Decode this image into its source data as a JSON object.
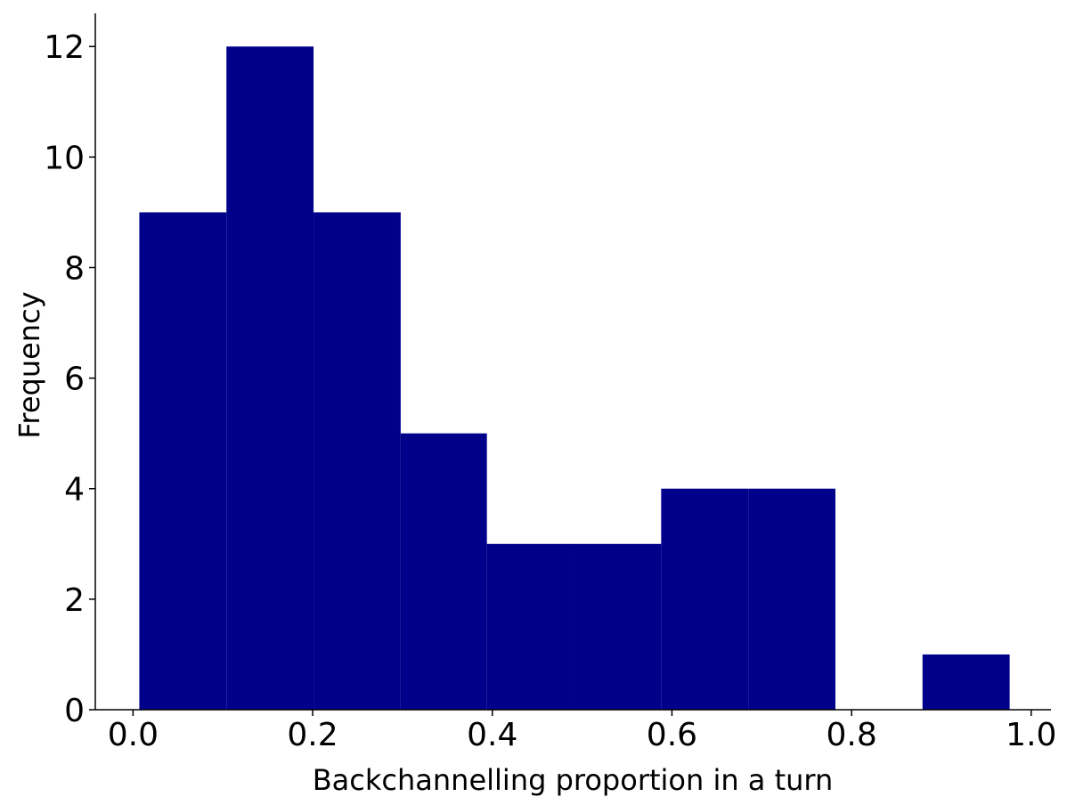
{
  "chart_data": {
    "type": "histogram",
    "xlabel": "Backchannelling proportion in a turn",
    "ylabel": "Frequency",
    "bins": [
      0.007,
      0.104,
      0.201,
      0.298,
      0.394,
      0.491,
      0.588,
      0.685,
      0.782,
      0.879,
      0.976
    ],
    "values": [
      9,
      12,
      9,
      5,
      3,
      3,
      4,
      4,
      0,
      1
    ],
    "color": "#00008b",
    "xlim": [
      -0.042,
      1.022
    ],
    "ylim": [
      0,
      12.6
    ],
    "xticks": [
      {
        "value": 0,
        "label": "0.0"
      },
      {
        "value": 0.2,
        "label": "0.2"
      },
      {
        "value": 0.4,
        "label": "0.4"
      },
      {
        "value": 0.6,
        "label": "0.6"
      },
      {
        "value": 0.8,
        "label": "0.8"
      },
      {
        "value": 1,
        "label": "1.0"
      }
    ],
    "yticks": [
      0,
      2,
      4,
      6,
      8,
      10,
      12
    ]
  }
}
